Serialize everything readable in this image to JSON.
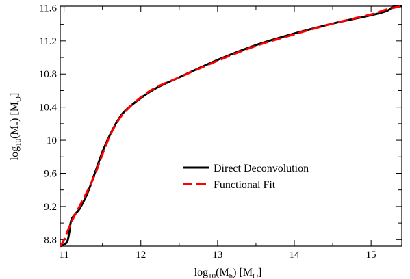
{
  "chart_data": {
    "type": "line",
    "title": "",
    "xlabel": {
      "main": "log",
      "sub1": "10",
      "mid": "(M",
      "sub2": "h",
      "end": ") [M",
      "sub3": "ʘ",
      "close": "]"
    },
    "ylabel": {
      "main": "log",
      "sub1": "10",
      "mid": "(M",
      "sub2": "*",
      "end": ") [M",
      "sub3": "ʘ",
      "close": "]"
    },
    "xlim": [
      10.95,
      15.4
    ],
    "ylim": [
      8.72,
      11.62
    ],
    "xticks": [
      11,
      12,
      13,
      14,
      15
    ],
    "xtick_labels": [
      "11",
      "12",
      "13",
      "14",
      "15"
    ],
    "yticks": [
      8.8,
      9.2,
      9.6,
      10.0,
      10.4,
      10.8,
      11.2,
      11.6
    ],
    "ytick_labels": [
      "8.8",
      "9.2",
      "9.6",
      "10",
      "10.4",
      "10.8",
      "11.2",
      "11.6"
    ],
    "grid": false,
    "legend_position": "center-right",
    "series": [
      {
        "name": "Direct Deconvolution",
        "color": "#000000",
        "style": "solid",
        "x": [
          10.95,
          11.0,
          11.03,
          11.05,
          11.07,
          11.1,
          11.2,
          11.3,
          11.4,
          11.5,
          11.6,
          11.7,
          11.8,
          12.0,
          12.2,
          12.5,
          13.0,
          13.5,
          14.0,
          14.5,
          15.0,
          15.2,
          15.3,
          15.4
        ],
        "y": [
          8.72,
          8.74,
          8.76,
          8.8,
          8.9,
          9.05,
          9.17,
          9.35,
          9.6,
          9.86,
          10.07,
          10.24,
          10.36,
          10.51,
          10.63,
          10.76,
          10.97,
          11.15,
          11.29,
          11.41,
          11.51,
          11.56,
          11.62,
          11.62
        ]
      },
      {
        "name": "Functional Fit",
        "color": "#ff0000",
        "style": "dashed",
        "x": [
          10.95,
          11.0,
          11.1,
          11.2,
          11.3,
          11.4,
          11.5,
          11.6,
          11.7,
          11.8,
          12.0,
          12.2,
          12.5,
          13.0,
          13.5,
          14.0,
          14.5,
          15.0,
          15.2,
          15.4
        ],
        "y": [
          8.72,
          8.8,
          9.02,
          9.2,
          9.38,
          9.58,
          9.83,
          10.06,
          10.23,
          10.35,
          10.52,
          10.64,
          10.76,
          10.96,
          11.14,
          11.28,
          11.41,
          11.52,
          11.58,
          11.62
        ]
      }
    ]
  }
}
